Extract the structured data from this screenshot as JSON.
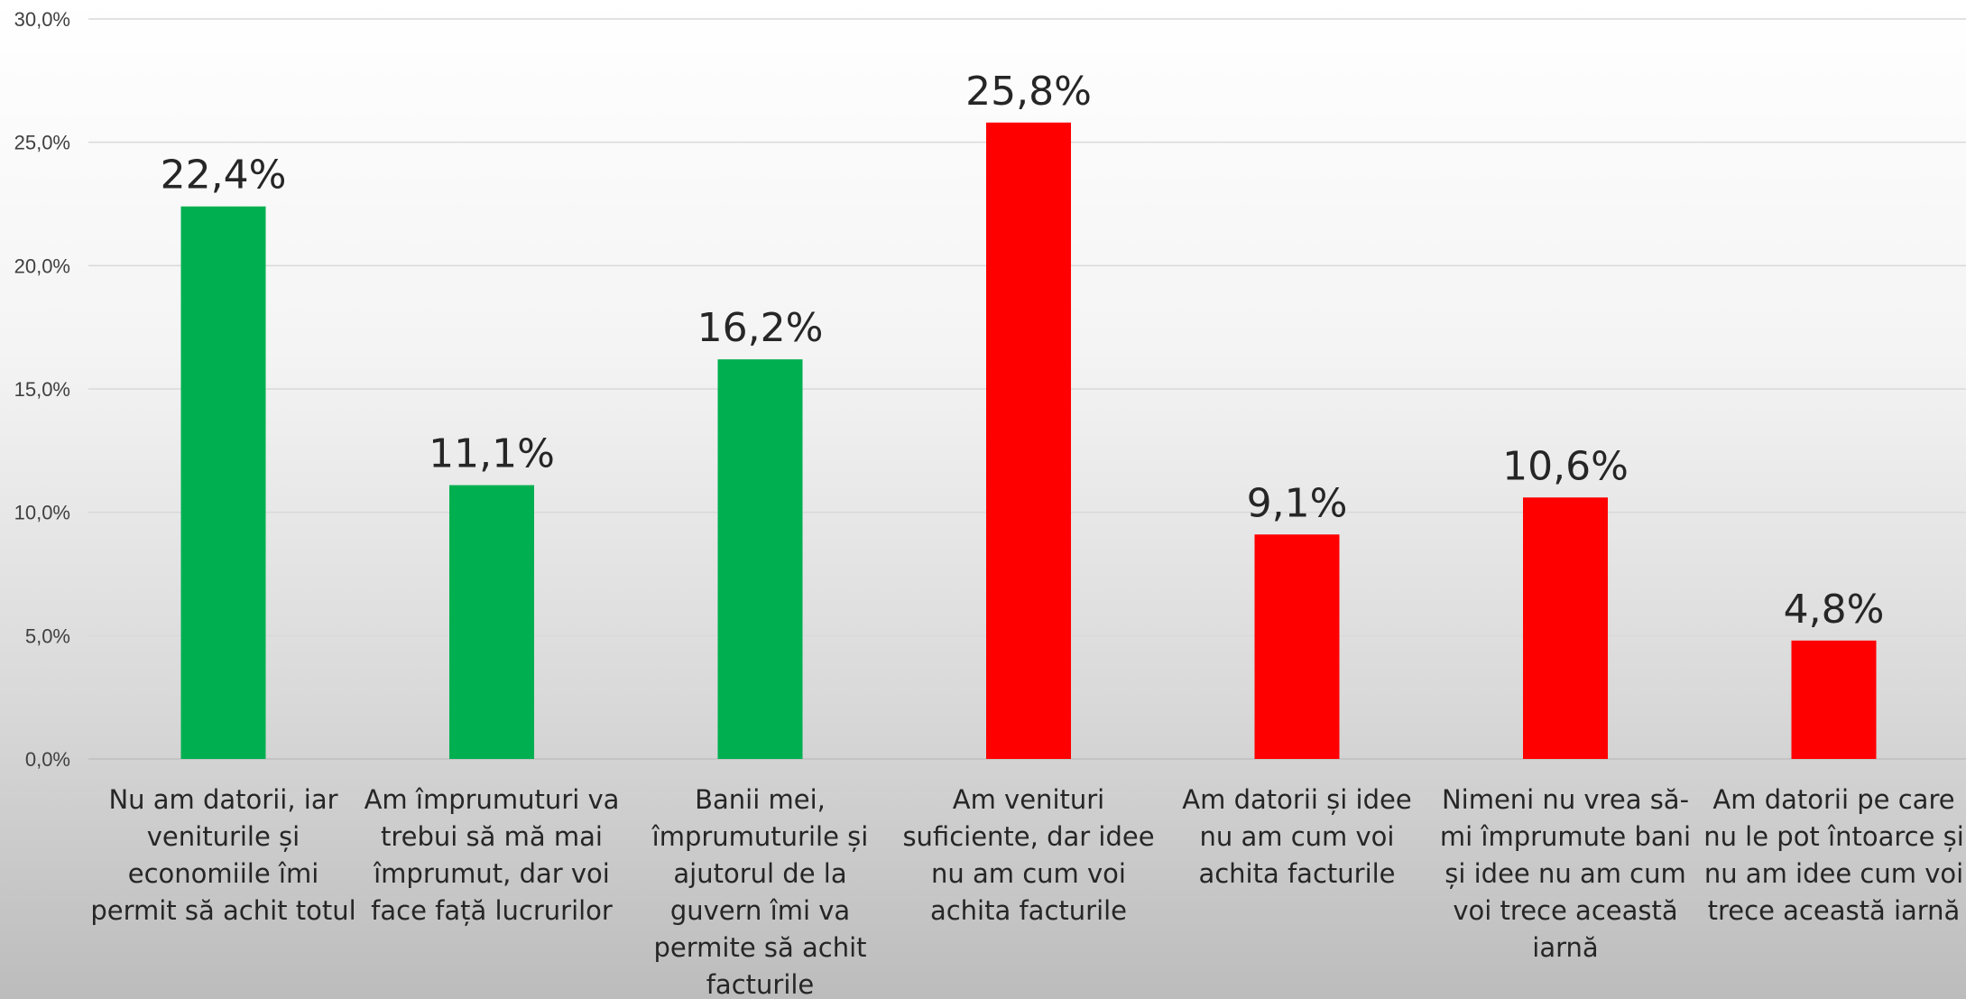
{
  "chart_data": {
    "type": "bar",
    "categories": [
      [
        "Nu am datorii, iar",
        "veniturile și",
        "economiile îmi",
        "permit să achit totul"
      ],
      [
        "Am împrumuturi va",
        "trebui să mă mai",
        "împrumut, dar voi",
        "face față lucrurilor"
      ],
      [
        "Banii mei,",
        "împrumuturile și",
        "ajutorul de la",
        "guvern îmi va",
        "permite să achit",
        "facturile"
      ],
      [
        "Am venituri",
        "suficiente, dar idee",
        "nu am cum voi",
        "achita facturile"
      ],
      [
        "Am datorii și idee",
        "nu am cum voi",
        "achita facturile"
      ],
      [
        "Nimeni nu vrea să-",
        "mi împrumute bani",
        "și idee nu am cum",
        "voi trece această",
        "iarnă"
      ],
      [
        "Am datorii pe care",
        "nu le pot întoarce și",
        "nu am idee cum voi",
        "trece această iarnă"
      ]
    ],
    "values": [
      22.4,
      11.1,
      16.2,
      25.8,
      9.1,
      10.6,
      4.8
    ],
    "data_labels": [
      "22,4%",
      "11,1%",
      "16,2%",
      "25,8%",
      "9,1%",
      "10,6%",
      "4,8%"
    ],
    "bar_colors": [
      "#00b050",
      "#00b050",
      "#00b050",
      "#ff0000",
      "#ff0000",
      "#ff0000",
      "#ff0000"
    ],
    "ylim": [
      0,
      30
    ],
    "yticks": [
      "0,0%",
      "5,0%",
      "10,0%",
      "15,0%",
      "20,0%",
      "25,0%",
      "30,0%"
    ],
    "grid": true,
    "gridline_color": "#d9d9d9",
    "legend": "none"
  }
}
